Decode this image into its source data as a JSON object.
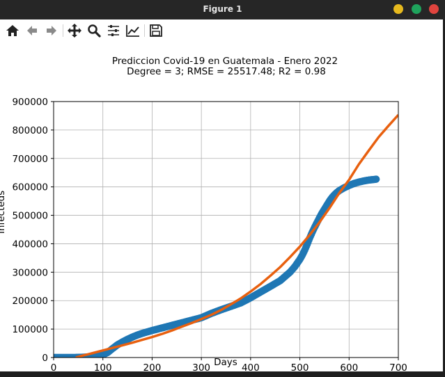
{
  "window": {
    "title": "Figure 1",
    "controls": [
      {
        "name": "minimize",
        "color": "#e6b91e"
      },
      {
        "name": "maximize",
        "color": "#1fa35c"
      },
      {
        "name": "close",
        "color": "#e0443e"
      }
    ]
  },
  "toolbar": {
    "buttons": [
      {
        "name": "home-icon",
        "tooltip": "Home"
      },
      {
        "name": "back-icon",
        "tooltip": "Back"
      },
      {
        "name": "forward-icon",
        "tooltip": "Forward"
      },
      {
        "name": "pan-icon",
        "tooltip": "Pan"
      },
      {
        "name": "zoom-icon",
        "tooltip": "Zoom"
      },
      {
        "name": "configure-subplots-icon",
        "tooltip": "Subplots"
      },
      {
        "name": "edit-axis-icon",
        "tooltip": "Customize"
      },
      {
        "name": "save-icon",
        "tooltip": "Save"
      }
    ]
  },
  "chart_data": {
    "type": "scatter",
    "title": "Prediccion Covid-19 en Guatemala - Enero 2022",
    "subtitle": "Degree = 3; RMSE = 25517.48; R2 = 0.98",
    "xlabel": "Days",
    "ylabel": "Infecteds",
    "xlim": [
      0,
      700
    ],
    "ylim": [
      0,
      900000
    ],
    "xticks": [
      0,
      100,
      200,
      300,
      400,
      500,
      600,
      700
    ],
    "yticks": [
      0,
      100000,
      200000,
      300000,
      400000,
      500000,
      600000,
      700000,
      800000,
      900000
    ],
    "grid": true,
    "colors": {
      "observed": "#1f77b4",
      "fit": "#e8600f"
    },
    "series": [
      {
        "type": "scatter",
        "x": [
          0,
          20,
          40,
          60,
          80,
          100,
          110,
          120,
          130,
          140,
          150,
          160,
          170,
          180,
          200,
          220,
          240,
          260,
          280,
          300,
          320,
          340,
          360,
          380,
          400,
          420,
          440,
          460,
          470,
          480,
          490,
          500,
          505,
          510,
          515,
          520,
          525,
          530,
          535,
          540,
          545,
          550,
          555,
          560,
          565,
          570,
          575,
          580,
          590,
          600,
          610,
          620,
          630,
          640,
          650,
          655
        ],
        "y": [
          0,
          0,
          0,
          1000,
          3000,
          10000,
          18000,
          32000,
          45000,
          55000,
          64000,
          72000,
          79000,
          85000,
          95000,
          104000,
          113000,
          122000,
          131000,
          140000,
          155000,
          168000,
          180000,
          192000,
          210000,
          230000,
          250000,
          270000,
          285000,
          300000,
          320000,
          345000,
          360000,
          378000,
          398000,
          420000,
          440000,
          458000,
          475000,
          492000,
          508000,
          522000,
          536000,
          550000,
          562000,
          572000,
          580000,
          587000,
          597000,
          605000,
          612000,
          617000,
          621000,
          624000,
          626000,
          627000
        ]
      },
      {
        "type": "line",
        "x": [
          45,
          60,
          80,
          100,
          120,
          140,
          160,
          180,
          200,
          220,
          240,
          260,
          280,
          300,
          320,
          340,
          360,
          380,
          400,
          420,
          440,
          460,
          480,
          500,
          520,
          540,
          560,
          580,
          600,
          620,
          640,
          660,
          680,
          700
        ],
        "y": [
          0,
          7000,
          16000,
          25000,
          34000,
          43000,
          52000,
          62000,
          72000,
          83000,
          95000,
          108000,
          121000,
          135000,
          150000,
          167000,
          187000,
          208000,
          232000,
          258000,
          287000,
          318000,
          353000,
          390000,
          431000,
          476000,
          525000,
          578000,
          625000,
          680000,
          728000,
          775000,
          815000,
          853000
        ]
      }
    ]
  }
}
